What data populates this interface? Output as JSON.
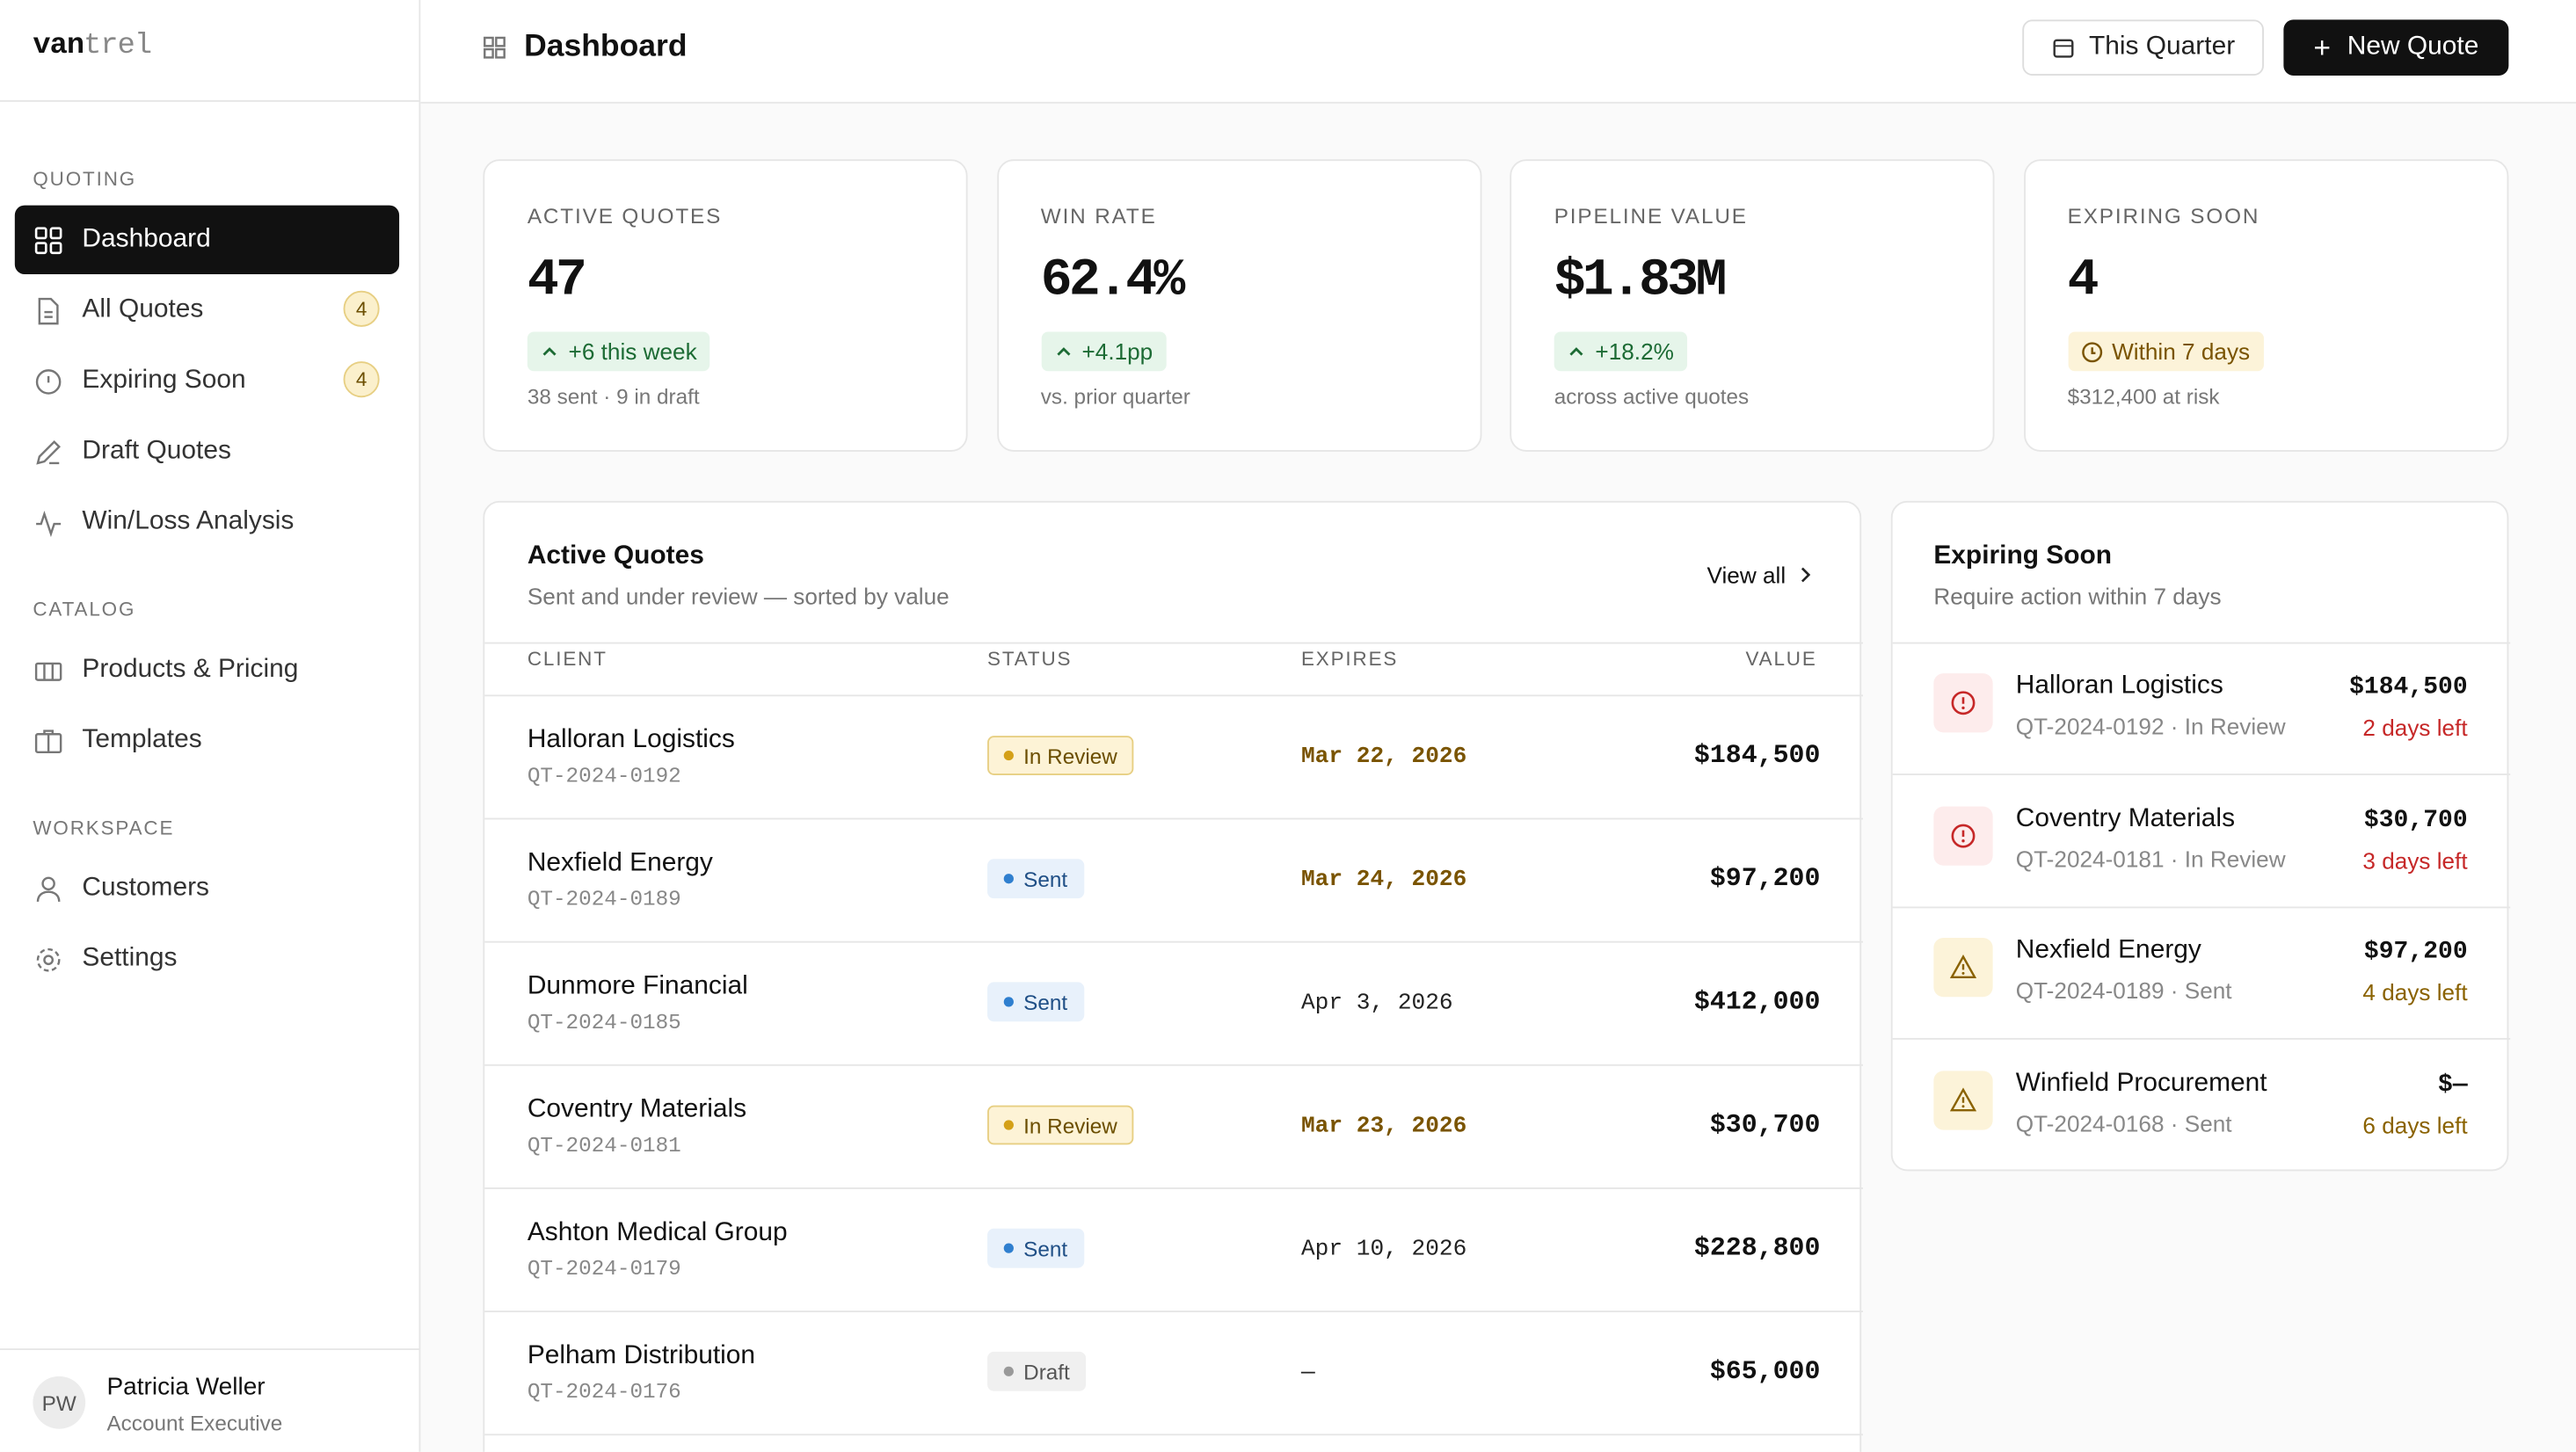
{
  "brand": {
    "part1": "van",
    "part2": "trel"
  },
  "header": {
    "title": "Dashboard",
    "period_button": "This Quarter",
    "new_button": "New Quote"
  },
  "sidebar": {
    "sections": [
      {
        "label": "QUOTING",
        "items": [
          {
            "label": "Dashboard",
            "icon": "grid",
            "active": true
          },
          {
            "label": "All Quotes",
            "icon": "doc",
            "badge": "4"
          },
          {
            "label": "Expiring Soon",
            "icon": "clock",
            "badge": "4"
          },
          {
            "label": "Draft Quotes",
            "icon": "pen"
          },
          {
            "label": "Win/Loss Analysis",
            "icon": "pulse"
          }
        ]
      },
      {
        "label": "CATALOG",
        "items": [
          {
            "label": "Products & Pricing",
            "icon": "box"
          },
          {
            "label": "Templates",
            "icon": "case"
          }
        ]
      },
      {
        "label": "WORKSPACE",
        "items": [
          {
            "label": "Customers",
            "icon": "user"
          },
          {
            "label": "Settings",
            "icon": "gear"
          }
        ]
      }
    ],
    "user": {
      "initials": "PW",
      "name": "Patricia Weller",
      "role": "Account Executive"
    }
  },
  "kpis": [
    {
      "label": "ACTIVE QUOTES",
      "value": "47",
      "delta": "+6 this week",
      "note": "38 sent · 9 in draft",
      "tone": "good"
    },
    {
      "label": "WIN RATE",
      "value": "62.4%",
      "delta": "+4.1pp",
      "note": "vs. prior quarter",
      "tone": "good"
    },
    {
      "label": "PIPELINE VALUE",
      "value": "$1.83M",
      "delta": "+18.2%",
      "note": "across active quotes",
      "tone": "good"
    },
    {
      "label": "EXPIRING SOON",
      "value": "4",
      "delta": "Within 7 days",
      "note": "$312,400 at risk",
      "tone": "warn"
    }
  ],
  "active_quotes": {
    "title": "Active Quotes",
    "subtitle": "Sent and under review — sorted by value",
    "view_all": "View all",
    "columns": [
      "CLIENT",
      "STATUS",
      "EXPIRES",
      "VALUE"
    ],
    "rows": [
      {
        "client": "Halloran Logistics",
        "id": "QT-2024-0192",
        "status": "In Review",
        "tone": "warning",
        "expires": "Mar 22, 2026",
        "expiring_soon": true,
        "value": "$184,500"
      },
      {
        "client": "Nexfield Energy",
        "id": "QT-2024-0189",
        "status": "Sent",
        "tone": "info",
        "expires": "Mar 24, 2026",
        "expiring_soon": true,
        "value": "$97,200"
      },
      {
        "client": "Dunmore Financial",
        "id": "QT-2024-0185",
        "status": "Sent",
        "tone": "info",
        "expires": "Apr 3, 2026",
        "expiring_soon": false,
        "value": "$412,000"
      },
      {
        "client": "Coventry Materials",
        "id": "QT-2024-0181",
        "status": "In Review",
        "tone": "warning",
        "expires": "Mar 23, 2026",
        "expiring_soon": true,
        "value": "$30,700"
      },
      {
        "client": "Ashton Medical Group",
        "id": "QT-2024-0179",
        "status": "Sent",
        "tone": "info",
        "expires": "Apr 10, 2026",
        "expiring_soon": false,
        "value": "$228,800"
      },
      {
        "client": "Pelham Distribution",
        "id": "QT-2024-0176",
        "status": "Draft",
        "tone": "neutral",
        "expires": "—",
        "expiring_soon": false,
        "value": "$65,000"
      }
    ]
  },
  "expiring": {
    "title": "Expiring Soon",
    "subtitle": "Require action within 7 days",
    "items": [
      {
        "client": "Halloran Logistics",
        "meta": "QT-2024-0192 · In Review",
        "value": "$184,500",
        "days_left": "2 days left",
        "level": "danger"
      },
      {
        "client": "Coventry Materials",
        "meta": "QT-2024-0181 · In Review",
        "value": "$30,700",
        "days_left": "3 days left",
        "level": "danger"
      },
      {
        "client": "Nexfield Energy",
        "meta": "QT-2024-0189 · Sent",
        "value": "$97,200",
        "days_left": "4 days left",
        "level": "warning"
      },
      {
        "client": "Winfield Procurement",
        "meta": "QT-2024-0168 · Sent",
        "value": "$—",
        "days_left": "6 days left",
        "level": "warning"
      }
    ]
  }
}
